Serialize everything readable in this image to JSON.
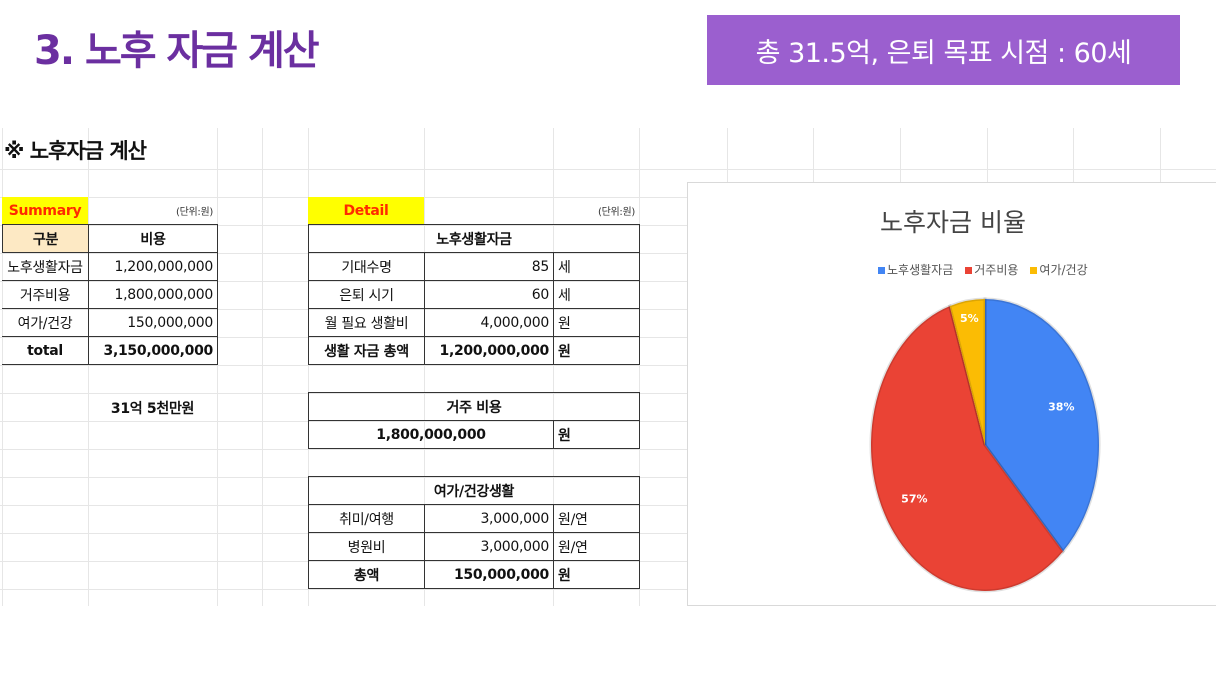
{
  "header": {
    "title": "3. 노후 자금 계산",
    "badge": "총 31.5억, 은퇴 목표 시점  : 60세"
  },
  "sheet_title": "※ 노후자금 계산",
  "summary": {
    "label": "Summary",
    "unit": "(단위:원)",
    "col1": "구분",
    "col2": "비용",
    "rows": [
      {
        "k": "노후생활자금",
        "v": "1,200,000,000"
      },
      {
        "k": "거주비용",
        "v": "1,800,000,000"
      },
      {
        "k": "여가/건강",
        "v": "150,000,000"
      },
      {
        "k": "total",
        "v": "3,150,000,000"
      }
    ],
    "korean_total": "31억 5천만원"
  },
  "detail": {
    "label": "Detail",
    "unit": "(단위:원)",
    "living": {
      "title": "노후생활자금",
      "rows": [
        {
          "k": "기대수명",
          "v": "85",
          "u": "세"
        },
        {
          "k": "은퇴 시기",
          "v": "60",
          "u": "세"
        },
        {
          "k": "월 필요 생활비",
          "v": "4,000,000",
          "u": "원"
        },
        {
          "k": "생활 자금 총액",
          "v": "1,200,000,000",
          "u": "원"
        }
      ]
    },
    "housing": {
      "title": "거주 비용",
      "v": "1,800,000,000",
      "u": "원"
    },
    "leisure": {
      "title": "여가/건강생활",
      "rows": [
        {
          "k": "취미/여행",
          "v": "3,000,000",
          "u": "원/연"
        },
        {
          "k": "병원비",
          "v": "3,000,000",
          "u": "원/연"
        },
        {
          "k": "총액",
          "v": "150,000,000",
          "u": "원"
        }
      ]
    }
  },
  "chart_data": {
    "type": "pie",
    "title": "노후자금 비율",
    "categories": [
      "노후생활자금",
      "거주비용",
      "여가/건강"
    ],
    "values": [
      38,
      57,
      5
    ],
    "labels": [
      "38%",
      "57%",
      "5%"
    ],
    "colors": [
      "#4285f4",
      "#ea4335",
      "#fbbc04"
    ],
    "legend": "top"
  }
}
